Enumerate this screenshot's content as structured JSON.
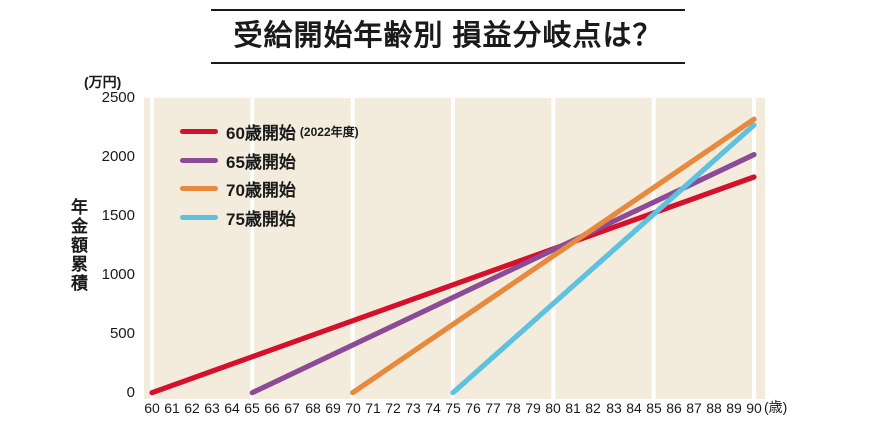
{
  "title": "受給開始年齢別 損益分岐点は？",
  "chart_data": {
    "type": "line",
    "title": "受給開始年齢別 損益分岐点は？",
    "ylabel": "年金額累積",
    "y_unit": "(万円)",
    "x_unit": "(歳)",
    "xlim": [
      60,
      90
    ],
    "ylim": [
      0,
      2500
    ],
    "y_ticks": [
      2500,
      2000,
      1500,
      1000,
      500,
      0
    ],
    "x_ticks": [
      60,
      61,
      62,
      63,
      64,
      65,
      66,
      67,
      68,
      69,
      70,
      71,
      72,
      73,
      74,
      75,
      76,
      77,
      78,
      79,
      80,
      81,
      82,
      83,
      84,
      85,
      86,
      87,
      88,
      89,
      90
    ],
    "gridline_ages": [
      60,
      65,
      70,
      75,
      80,
      85,
      90
    ],
    "grid": "vertical-only",
    "legend_position": "top-left",
    "colors": {
      "plot_bg": "#f3ecdd",
      "grid": "#ffffff",
      "text": "#1a1a1a"
    },
    "series": [
      {
        "name": "60歳開始",
        "note": "(2022年度)",
        "color": "#d5102d",
        "start_age": 60,
        "points": [
          [
            60,
            0
          ],
          [
            90,
            1830
          ]
        ]
      },
      {
        "name": "65歳開始",
        "note": "",
        "color": "#8d4a97",
        "start_age": 65,
        "points": [
          [
            65,
            0
          ],
          [
            90,
            2020
          ]
        ]
      },
      {
        "name": "70歳開始",
        "note": "",
        "color": "#e78a3e",
        "start_age": 70,
        "points": [
          [
            70,
            0
          ],
          [
            90,
            2320
          ]
        ]
      },
      {
        "name": "75歳開始",
        "note": "",
        "color": "#5ec1e0",
        "start_age": 75,
        "points": [
          [
            75,
            0
          ],
          [
            90,
            2270
          ]
        ]
      }
    ]
  }
}
